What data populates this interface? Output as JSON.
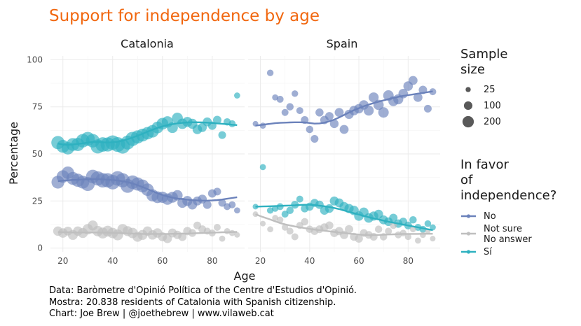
{
  "chart_data": {
    "type": "scatter",
    "title": "Support for independence by age",
    "xlabel": "Age",
    "ylabel": "Percentage",
    "xlim": [
      15,
      93
    ],
    "ylim": [
      -2,
      102
    ],
    "x_ticks": [
      "20",
      "40",
      "60",
      "80"
    ],
    "y_ticks": [
      "0",
      "25",
      "50",
      "75",
      "100"
    ],
    "x_tick_values": [
      20,
      40,
      60,
      80
    ],
    "y_tick_values": [
      0,
      25,
      50,
      75,
      100
    ],
    "panels": [
      "Catalonia",
      "Spain"
    ],
    "size_legend": {
      "title_lines": [
        "Sample",
        "size"
      ],
      "items": [
        {
          "label": "25",
          "value": 25
        },
        {
          "label": "100",
          "value": 100
        },
        {
          "label": "200",
          "value": 200
        }
      ]
    },
    "color_legend": {
      "title_lines": [
        "In favor",
        "of",
        "independence?"
      ],
      "items": [
        {
          "key": "no",
          "label_lines": [
            "No"
          ],
          "color": "#6b82bb"
        },
        {
          "key": "notsure",
          "label_lines": [
            "Not sure",
            "No answer"
          ],
          "color": "#bfbfbf"
        },
        {
          "key": "si",
          "label_lines": [
            "Sí"
          ],
          "color": "#2eb1c0"
        }
      ]
    },
    "series": [
      {
        "key": "si",
        "panel": "Catalonia",
        "x": [
          18,
          20,
          22,
          24,
          26,
          28,
          30,
          32,
          34,
          36,
          38,
          40,
          42,
          44,
          46,
          48,
          50,
          52,
          54,
          56,
          58,
          60,
          62,
          64,
          66,
          68,
          70,
          72,
          74,
          76,
          78,
          80,
          82,
          84,
          86,
          88,
          90
        ],
        "values": [
          56,
          54,
          53,
          55,
          55,
          57,
          58,
          57,
          54,
          55,
          55,
          56,
          55,
          54,
          56,
          58,
          59,
          60,
          61,
          62,
          64,
          66,
          67,
          64,
          69,
          66,
          67,
          66,
          63,
          64,
          67,
          65,
          68,
          60,
          67,
          66,
          81
        ],
        "sizes": [
          160,
          150,
          140,
          150,
          160,
          170,
          180,
          170,
          190,
          200,
          190,
          200,
          210,
          200,
          180,
          190,
          160,
          150,
          140,
          140,
          120,
          120,
          110,
          100,
          100,
          90,
          80,
          80,
          70,
          60,
          60,
          50,
          50,
          40,
          35,
          30,
          20
        ],
        "smooth": [
          55.5,
          55,
          54.8,
          55,
          55.3,
          55.6,
          56,
          56.3,
          56.4,
          56.2,
          56,
          56.2,
          56.5,
          57,
          57.8,
          58.7,
          59.7,
          60.7,
          61.8,
          62.8,
          63.8,
          64.6,
          65.3,
          65.8,
          66.2,
          66.5,
          66.7,
          66.8,
          66.8,
          66.7,
          66.6,
          66.4,
          66.2,
          66,
          65.8,
          65.5,
          65.3
        ]
      },
      {
        "key": "no",
        "panel": "Catalonia",
        "x": [
          18,
          20,
          22,
          24,
          26,
          28,
          30,
          32,
          34,
          36,
          38,
          40,
          42,
          44,
          46,
          48,
          50,
          52,
          54,
          56,
          58,
          60,
          62,
          64,
          66,
          68,
          70,
          72,
          74,
          76,
          78,
          80,
          82,
          84,
          86,
          88,
          90
        ],
        "values": [
          35,
          38,
          40,
          37,
          36,
          35,
          34,
          38,
          37,
          36,
          36,
          35,
          37,
          36,
          33,
          35,
          34,
          33,
          31,
          28,
          27,
          27,
          26,
          27,
          28,
          24,
          25,
          23,
          25,
          26,
          23,
          29,
          30,
          24,
          22,
          23,
          20
        ],
        "sizes": [
          150,
          140,
          140,
          150,
          160,
          150,
          180,
          170,
          190,
          200,
          190,
          200,
          200,
          190,
          180,
          170,
          160,
          150,
          140,
          130,
          120,
          110,
          110,
          100,
          90,
          80,
          80,
          70,
          60,
          60,
          50,
          50,
          40,
          40,
          30,
          30,
          20
        ],
        "smooth": [
          35.5,
          35.8,
          36,
          36.2,
          36.3,
          36.4,
          36.5,
          36.6,
          36.6,
          36.5,
          36.3,
          36.1,
          35.9,
          35.5,
          35,
          34.3,
          33.4,
          32.4,
          31.3,
          30.2,
          29.1,
          28.2,
          27.4,
          26.8,
          26.3,
          26,
          25.7,
          25.5,
          25.3,
          25.2,
          25.2,
          25.3,
          25.5,
          25.8,
          26.2,
          26.6,
          27
        ]
      },
      {
        "key": "notsure",
        "panel": "Catalonia",
        "x": [
          18,
          20,
          22,
          24,
          26,
          28,
          30,
          32,
          34,
          36,
          38,
          40,
          42,
          44,
          46,
          48,
          50,
          52,
          54,
          56,
          58,
          60,
          62,
          64,
          66,
          68,
          70,
          72,
          74,
          76,
          78,
          80,
          82,
          84,
          86,
          88,
          90
        ],
        "values": [
          9,
          8,
          9,
          7,
          9,
          8,
          10,
          12,
          9,
          8,
          9,
          8,
          7,
          10,
          9,
          8,
          6,
          7,
          9,
          7,
          8,
          6,
          5,
          8,
          7,
          6,
          9,
          8,
          12,
          10,
          9,
          8,
          11,
          5,
          9,
          8,
          7
        ],
        "sizes": [
          70,
          70,
          60,
          80,
          70,
          80,
          90,
          80,
          90,
          100,
          100,
          90,
          100,
          90,
          80,
          90,
          80,
          80,
          70,
          70,
          70,
          60,
          60,
          60,
          50,
          50,
          50,
          40,
          40,
          40,
          30,
          30,
          30,
          20,
          20,
          20,
          15
        ],
        "smooth": [
          8.5,
          8.4,
          8.4,
          8.3,
          8.3,
          8.3,
          8.3,
          8.3,
          8.3,
          8.2,
          8.2,
          8.1,
          8,
          7.9,
          7.8,
          7.7,
          7.6,
          7.5,
          7.5,
          7.5,
          7.5,
          7.5,
          7.5,
          7.6,
          7.6,
          7.7,
          7.7,
          7.8,
          7.9,
          8,
          8.1,
          8.2,
          8.3,
          8.4,
          8.4,
          8.5,
          8.6
        ]
      },
      {
        "key": "no",
        "panel": "Spain",
        "x": [
          18,
          21,
          24,
          26,
          28,
          30,
          32,
          34,
          36,
          38,
          40,
          42,
          44,
          46,
          48,
          50,
          52,
          54,
          56,
          58,
          60,
          62,
          64,
          66,
          68,
          70,
          72,
          74,
          76,
          78,
          80,
          82,
          84,
          86,
          88,
          90
        ],
        "values": [
          66,
          65,
          93,
          80,
          79,
          72,
          75,
          82,
          73,
          68,
          63,
          58,
          72,
          68,
          70,
          66,
          72,
          63,
          71,
          73,
          74,
          76,
          73,
          80,
          76,
          72,
          81,
          78,
          79,
          82,
          86,
          89,
          80,
          84,
          74,
          83
        ],
        "sizes": [
          15,
          20,
          25,
          20,
          30,
          30,
          35,
          25,
          30,
          40,
          35,
          40,
          45,
          50,
          50,
          55,
          60,
          60,
          65,
          70,
          70,
          70,
          80,
          80,
          85,
          90,
          90,
          80,
          80,
          70,
          70,
          60,
          60,
          50,
          40,
          30
        ],
        "smooth": [
          65,
          65.5,
          66,
          66.3,
          66.5,
          66.6,
          66.7,
          66.8,
          66.8,
          66.7,
          66.4,
          66.1,
          66.2,
          66.6,
          67.3,
          68.2,
          69.4,
          70.7,
          72,
          73.2,
          74.3,
          75.3,
          76.2,
          77,
          77.7,
          78.4,
          79.1,
          79.7,
          80.3,
          80.8,
          81.2,
          81.6,
          82,
          82.4,
          82.8,
          83.2
        ]
      },
      {
        "key": "si",
        "panel": "Spain",
        "x": [
          18,
          21,
          24,
          26,
          28,
          30,
          32,
          34,
          36,
          38,
          40,
          42,
          44,
          46,
          48,
          50,
          52,
          54,
          56,
          58,
          60,
          62,
          64,
          66,
          68,
          70,
          72,
          74,
          76,
          78,
          80,
          82,
          84,
          86,
          88,
          90
        ],
        "values": [
          22,
          43,
          20,
          21,
          22,
          18,
          20,
          23,
          26,
          21,
          22,
          24,
          23,
          20,
          21,
          25,
          24,
          22,
          21,
          20,
          17,
          19,
          16,
          17,
          18,
          15,
          14,
          16,
          13,
          14,
          12,
          15,
          11,
          10,
          13,
          11
        ],
        "sizes": [
          15,
          20,
          25,
          25,
          30,
          30,
          35,
          40,
          30,
          40,
          45,
          45,
          50,
          55,
          55,
          60,
          60,
          65,
          65,
          70,
          70,
          70,
          70,
          65,
          60,
          60,
          55,
          50,
          50,
          45,
          40,
          35,
          30,
          30,
          25,
          20
        ],
        "smooth": [
          22,
          22.1,
          22.2,
          22.3,
          22.4,
          22.5,
          22.6,
          22.7,
          22.9,
          23,
          23,
          22.8,
          22.5,
          22.2,
          21.8,
          21.3,
          20.7,
          20,
          19.2,
          18.5,
          17.8,
          17.1,
          16.4,
          15.8,
          15.2,
          14.6,
          14,
          13.5,
          13,
          12.5,
          12,
          11.5,
          11,
          10.5,
          10,
          9.5
        ]
      },
      {
        "key": "notsure",
        "panel": "Spain",
        "x": [
          18,
          21,
          24,
          26,
          28,
          30,
          32,
          34,
          36,
          38,
          40,
          42,
          44,
          46,
          48,
          50,
          52,
          54,
          56,
          58,
          60,
          62,
          64,
          66,
          68,
          70,
          72,
          74,
          76,
          78,
          80,
          82,
          84,
          86,
          88,
          90
        ],
        "values": [
          18,
          13,
          10,
          16,
          15,
          11,
          9,
          6,
          12,
          14,
          10,
          9,
          10,
          11,
          12,
          8,
          9,
          7,
          10,
          6,
          5,
          8,
          7,
          6,
          10,
          6,
          9,
          12,
          7,
          8,
          6,
          10,
          4,
          7,
          9,
          5
        ],
        "sizes": [
          15,
          15,
          20,
          20,
          25,
          25,
          30,
          30,
          30,
          35,
          35,
          40,
          40,
          45,
          45,
          45,
          50,
          50,
          50,
          45,
          45,
          40,
          40,
          40,
          35,
          35,
          30,
          30,
          30,
          25,
          25,
          20,
          20,
          20,
          15,
          15
        ],
        "smooth": [
          18,
          16.5,
          15.2,
          14.2,
          13.3,
          12.6,
          12,
          11.5,
          11,
          10.6,
          10.2,
          9.8,
          9.5,
          9.2,
          8.9,
          8.6,
          8.3,
          8,
          7.7,
          7.4,
          7.2,
          7,
          6.9,
          6.9,
          7,
          7.1,
          7.2,
          7.3,
          7.4,
          7.5,
          7.5,
          7.5,
          7.5,
          7.6,
          7.6,
          7.6
        ]
      }
    ]
  },
  "caption_lines": [
    "Data: Baròmetre d'Opinió Política of the Centre d'Estudios d'Opinió.",
    "Mostra: 20.838 residents of Catalonia with Spanish citizenship.",
    "Chart: Joe Brew | @joethebrew | www.vilaweb.cat"
  ]
}
